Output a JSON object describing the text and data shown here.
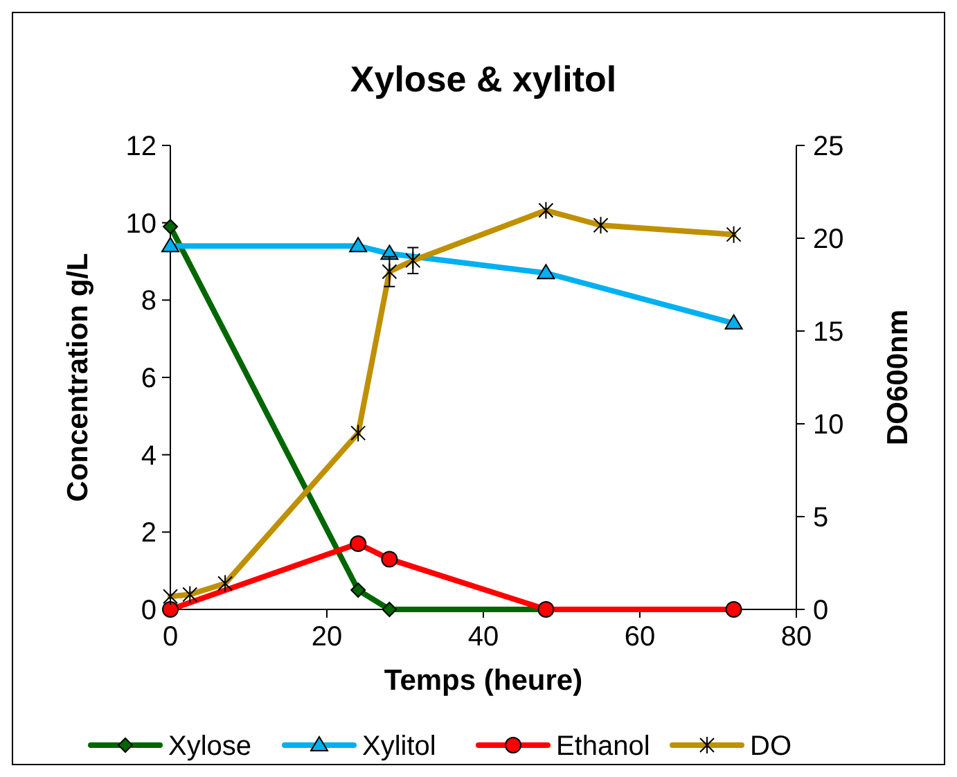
{
  "chart_data": {
    "type": "line",
    "title": "Xylose & xylitol",
    "xlabel": "Temps (heure)",
    "ylabel": "Concentration g/L",
    "y2label": "DO600nm",
    "xlim": [
      0,
      80
    ],
    "xticks": [
      0,
      20,
      40,
      60,
      80
    ],
    "ylim": [
      0,
      12
    ],
    "yticks": [
      0,
      2,
      4,
      6,
      8,
      10,
      12
    ],
    "y2lim": [
      0,
      25
    ],
    "y2ticks": [
      0,
      5,
      10,
      15,
      20,
      25
    ],
    "legend": "bottom",
    "grid": false,
    "series": [
      {
        "name": "Xylose",
        "color": "#006600",
        "marker": "diamond",
        "x": [
          0,
          24,
          28,
          48,
          72
        ],
        "values": [
          9.9,
          0.5,
          0,
          0,
          0
        ]
      },
      {
        "name": "Xylitol",
        "color": "#00b0f0",
        "marker": "triangle",
        "x": [
          0,
          24,
          28,
          48,
          72
        ],
        "values": [
          9.4,
          9.4,
          9.2,
          8.7,
          7.4
        ]
      },
      {
        "name": "Ethanol",
        "color": "#ff0000",
        "marker": "circle",
        "x": [
          0,
          24,
          28,
          48,
          72
        ],
        "values": [
          0,
          1.7,
          1.3,
          0,
          0
        ]
      },
      {
        "name": "DO",
        "color": "#bf9000",
        "marker": "cross",
        "axis": "y2",
        "x": [
          0,
          2.5,
          7,
          24,
          28,
          31,
          48,
          55,
          72
        ],
        "values": [
          0.7,
          0.8,
          1.4,
          9.5,
          18.2,
          18.8,
          21.5,
          20.7,
          20.2
        ],
        "errors": [
          null,
          null,
          null,
          null,
          0.8,
          0.7,
          null,
          null,
          null
        ]
      }
    ]
  }
}
